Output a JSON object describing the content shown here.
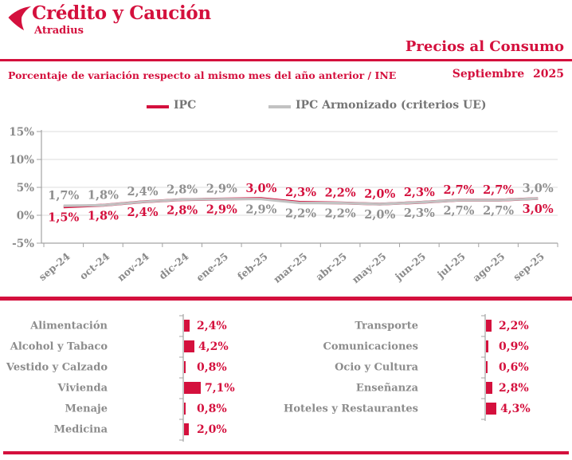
{
  "header": {
    "brand": "Crédito y Caución",
    "brand_sub": "Atradius",
    "title": "Precios al Consumo",
    "subtitle_left": "Porcentaje de variación respecto al mismo mes del año anterior / INE",
    "subtitle_right": "Septiembre 2025"
  },
  "colors": {
    "accent_red": "#d4103d",
    "gray_text": "#8c8c8c",
    "armonizado_line": "#c2c2c2",
    "gridline": "#dcdcdc",
    "axis": "#a3a3a3"
  },
  "legend": {
    "items": [
      {
        "label": "IPC",
        "color": "#d4103d"
      },
      {
        "label": "IPC Armonizado (criterios UE)",
        "color": "#c2c2c2"
      }
    ]
  },
  "chart_data": [
    {
      "type": "line",
      "title": "Precios al Consumo",
      "x": [
        "sep-24",
        "oct-24",
        "nov-24",
        "dic-24",
        "ene-25",
        "feb-25",
        "mar-25",
        "abr-25",
        "may-25",
        "jun-25",
        "jul-25",
        "ago-25",
        "sep-25"
      ],
      "series": [
        {
          "name": "IPC",
          "color": "#d4103d",
          "label_color": "#d4103d",
          "values": [
            1.5,
            1.8,
            2.4,
            2.8,
            2.9,
            3.0,
            2.3,
            2.2,
            2.0,
            2.3,
            2.7,
            2.7,
            3.0
          ],
          "labels": [
            "1,5%",
            "1,8%",
            "2,4%",
            "2,8%",
            "2,9%",
            "3,0%",
            "2,3%",
            "2,2%",
            "2,0%",
            "2,3%",
            "2,7%",
            "2,7%",
            "3,0%"
          ]
        },
        {
          "name": "IPC Armonizado (criterios UE)",
          "color": "#c2c2c2",
          "label_color": "#909090",
          "values": [
            1.7,
            1.8,
            2.4,
            2.8,
            2.9,
            2.9,
            2.2,
            2.2,
            2.0,
            2.3,
            2.7,
            2.7,
            3.0
          ],
          "labels": [
            "1,7%",
            "1,8%",
            "2,4%",
            "2,8%",
            "2,9%",
            "2,9%",
            "2,2%",
            "2,2%",
            "2,0%",
            "2,3%",
            "2,7%",
            "2,7%",
            "3,0%"
          ]
        }
      ],
      "top_label_series": [
        1,
        1,
        1,
        1,
        1,
        0,
        0,
        0,
        0,
        0,
        0,
        0,
        1
      ],
      "ylim": [
        -5,
        15
      ],
      "yticks": [
        {
          "v": 15,
          "label": "15%"
        },
        {
          "v": 10,
          "label": "10%"
        },
        {
          "v": 5,
          "label": "5%"
        },
        {
          "v": 0,
          "label": "0%"
        },
        {
          "v": -5,
          "label": "-5%"
        }
      ],
      "grid": true,
      "legend_position": "top"
    },
    {
      "type": "bar",
      "orientation": "horizontal",
      "bar_color": "#d4103d",
      "groups": [
        {
          "categories": [
            "Alimentación",
            "Alcohol y Tabaco",
            "Vestido y Calzado",
            "Vivienda",
            "Menaje",
            "Medicina"
          ],
          "values": [
            2.4,
            4.2,
            0.8,
            7.1,
            0.8,
            2.0
          ],
          "labels": [
            "2,4%",
            "4,2%",
            "0,8%",
            "7,1%",
            "0,8%",
            "2,0%"
          ]
        },
        {
          "categories": [
            "Transporte",
            "Comunicaciones",
            "Ocio y Cultura",
            "Enseñanza",
            "Hoteles y Restaurantes"
          ],
          "values": [
            2.2,
            0.9,
            0.6,
            2.8,
            4.3
          ],
          "labels": [
            "2,2%",
            "0,9%",
            "0,6%",
            "2,8%",
            "4,3%"
          ]
        }
      ]
    }
  ]
}
